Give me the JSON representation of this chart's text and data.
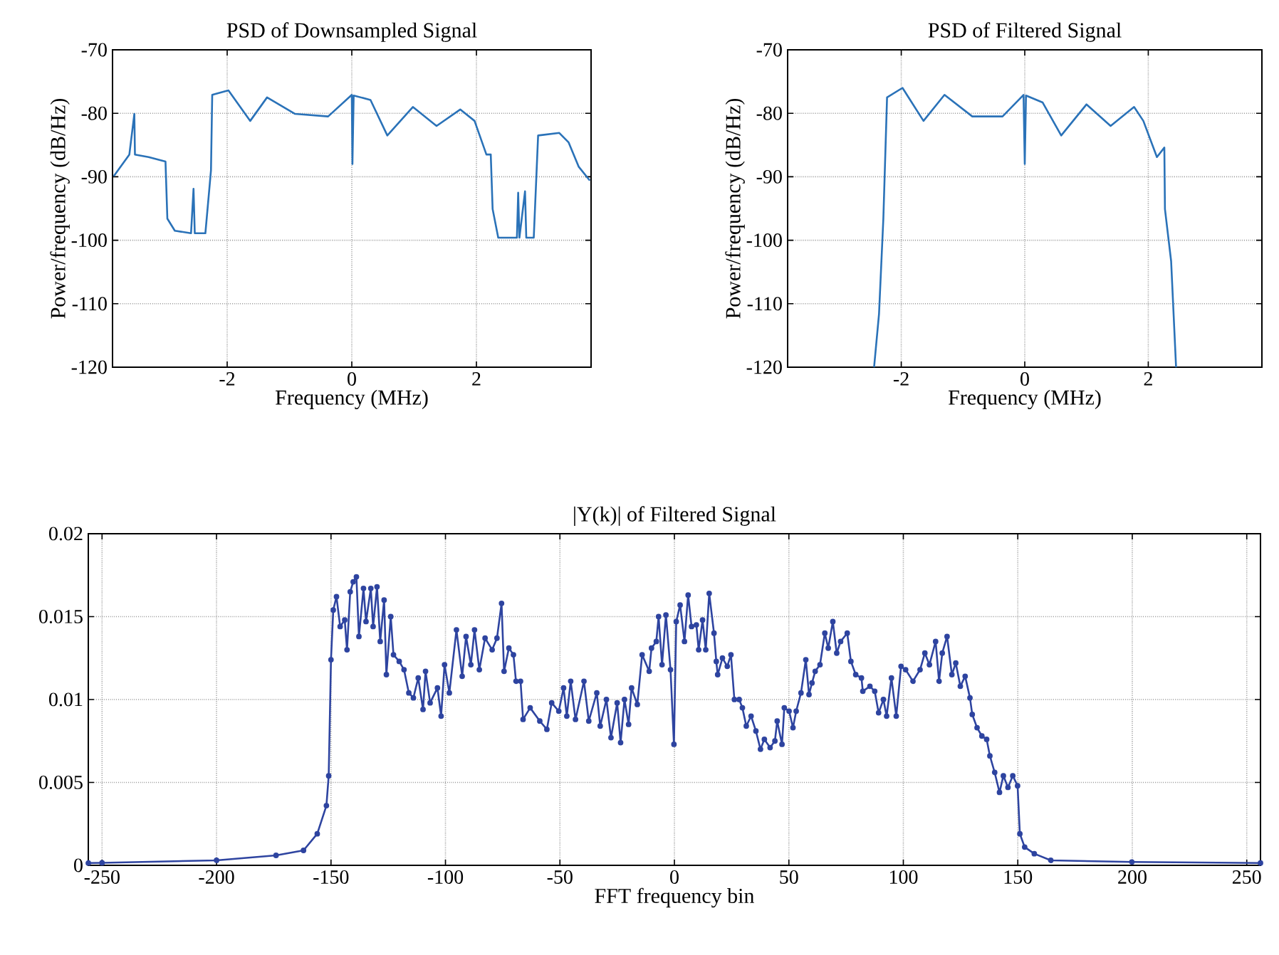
{
  "chart_data": [
    {
      "type": "line",
      "title": "PSD of Downsampled Signal",
      "xlabel": "Frequency (MHz)",
      "ylabel": "Power/frequency (dB/Hz)",
      "xlim": [
        -3.84,
        3.84
      ],
      "ylim": [
        -120,
        -70
      ],
      "xticks": [
        -2,
        0,
        2
      ],
      "yticks": [
        -120,
        -110,
        -100,
        -90,
        -80,
        -70
      ],
      "grid": true,
      "series": [
        {
          "color": "#2a72b8",
          "x": [
            -3.82,
            -3.57,
            -3.49,
            -3.48,
            -3.26,
            -2.99,
            -2.96,
            -2.84,
            -2.58,
            -2.54,
            -2.52,
            -2.35,
            -2.26,
            -2.24,
            -1.98,
            -1.63,
            -1.36,
            -0.91,
            -0.38,
            0,
            0.01,
            0.03,
            0.3,
            0.57,
            0.98,
            1.36,
            1.74,
            1.97,
            2.16,
            2.23,
            2.26,
            2.35,
            2.65,
            2.67,
            2.69,
            2.78,
            2.8,
            2.92,
            2.99,
            3.33,
            3.48,
            3.64,
            3.82
          ],
          "values": [
            -89.9,
            -86.5,
            -80.1,
            -86.5,
            -86.9,
            -87.6,
            -96.6,
            -98.5,
            -98.9,
            -91.9,
            -98.9,
            -98.9,
            -89,
            -77.1,
            -76.4,
            -81.2,
            -77.5,
            -80.1,
            -80.5,
            -77.1,
            -88,
            -77.2,
            -77.9,
            -83.5,
            -79,
            -82,
            -79.4,
            -81.2,
            -86.5,
            -86.5,
            -95.1,
            -99.6,
            -99.6,
            -92.5,
            -99.6,
            -92.3,
            -99.6,
            -99.6,
            -83.5,
            -83.1,
            -84.6,
            -88.4,
            -90.6
          ]
        }
      ]
    },
    {
      "type": "line",
      "title": "PSD of Filtered Signal",
      "xlabel": "Frequency (MHz)",
      "ylabel": "Power/frequency (dB/Hz)",
      "xlim": [
        -3.84,
        3.84
      ],
      "ylim": [
        -120,
        -70
      ],
      "xticks": [
        -2,
        0,
        2
      ],
      "yticks": [
        -120,
        -110,
        -100,
        -90,
        -80,
        -70
      ],
      "grid": true,
      "series": [
        {
          "color": "#2a72b8",
          "x": [
            -2.44,
            -2.36,
            -2.29,
            -2.23,
            -1.98,
            -1.64,
            -1.3,
            -0.85,
            -0.36,
            -0.02,
            0,
            0.02,
            0.29,
            0.59,
            1.0,
            1.39,
            1.77,
            1.92,
            2.14,
            2.26,
            2.27,
            2.37,
            2.45
          ],
          "values": [
            -120,
            -111.6,
            -96.6,
            -77.5,
            -76,
            -81.2,
            -77.1,
            -80.5,
            -80.5,
            -77.1,
            -88,
            -77.2,
            -78.3,
            -83.5,
            -78.6,
            -82,
            -79,
            -81.2,
            -86.9,
            -85.4,
            -95.1,
            -103.3,
            -120
          ]
        }
      ]
    },
    {
      "type": "line",
      "title": "|Y(k)| of Filtered Signal",
      "xlabel": "FFT frequency bin",
      "xlim": [
        -256,
        256
      ],
      "ylim": [
        0,
        0.02
      ],
      "xticks": [
        -250,
        -200,
        -150,
        -100,
        -50,
        0,
        50,
        100,
        150,
        200,
        250
      ],
      "yticks": [
        0,
        0.005,
        0.01,
        0.015,
        0.02
      ],
      "grid": true,
      "marker": "circle",
      "series": [
        {
          "color": "#2e44a0",
          "x": [
            -256,
            -250,
            -200,
            -174,
            -162,
            -156,
            -152,
            -151,
            -150,
            -149,
            -147.6,
            -146,
            -144,
            -143,
            -141.6,
            -140.3,
            -138.9,
            -137.8,
            -135.8,
            -134.7,
            -132.6,
            -131.6,
            -129.9,
            -128.5,
            -126.8,
            -125.8,
            -123.9,
            -122.7,
            -120.2,
            -118.1,
            -116,
            -114,
            -111.9,
            -109.8,
            -108.7,
            -106.7,
            -103.5,
            -101.9,
            -100.4,
            -98.3,
            -95.2,
            -92.7,
            -91,
            -88.9,
            -87.3,
            -85.2,
            -82.7,
            -79.6,
            -77.5,
            -75.5,
            -74.4,
            -72.3,
            -70.3,
            -69.2,
            -67.2,
            -66.1,
            -63,
            -58.8,
            -55.7,
            -53.6,
            -50.5,
            -48.4,
            -47,
            -45.3,
            -43.2,
            -39.5,
            -37.4,
            -33.9,
            -32.4,
            -29.7,
            -27.7,
            -25,
            -23.5,
            -21.8,
            -20,
            -18.7,
            -16.2,
            -14.1,
            -11,
            -10,
            -7.9,
            -6.9,
            -5.4,
            -3.7,
            -1.7,
            -0.2,
            0.8,
            2.5,
            4.4,
            6,
            7.5,
            9.6,
            10.6,
            12.3,
            13.7,
            15.2,
            17.3,
            18.3,
            18.9,
            21,
            23.1,
            24.7,
            26.2,
            28.3,
            29.7,
            31.4,
            33.5,
            35.6,
            37.6,
            39.3,
            41.8,
            43.9,
            44.9,
            47,
            48,
            50.1,
            51.8,
            53.2,
            55.3,
            57.4,
            58.8,
            60.1,
            61.5,
            63.6,
            65.7,
            67.2,
            69.2,
            70.9,
            72.6,
            75.5,
            77.1,
            79.2,
            81.7,
            82.3,
            85.4,
            87.5,
            89.2,
            91.3,
            92.7,
            94.8,
            96.9,
            99,
            101,
            104.2,
            107.3,
            109.4,
            111.4,
            114.1,
            115.6,
            117,
            119.1,
            121.2,
            122.9,
            124.9,
            127,
            129.1,
            130.1,
            132.2,
            134.3,
            136.4,
            137.8,
            139.9,
            142,
            143.7,
            145.7,
            147.8,
            149.9,
            150.9,
            153,
            157.2,
            164.4,
            199.8,
            256
          ],
          "values": [
            0.00014,
            0.00015,
            0.0003,
            0.0006,
            0.0009,
            0.0019,
            0.0036,
            0.0054,
            0.0124,
            0.0154,
            0.0162,
            0.0144,
            0.0148,
            0.013,
            0.0165,
            0.0171,
            0.0174,
            0.0138,
            0.0167,
            0.0147,
            0.0167,
            0.0144,
            0.0168,
            0.0135,
            0.016,
            0.0115,
            0.015,
            0.0127,
            0.0123,
            0.0118,
            0.0104,
            0.0101,
            0.0113,
            0.0094,
            0.0117,
            0.0098,
            0.0107,
            0.009,
            0.0121,
            0.0104,
            0.0142,
            0.0114,
            0.0138,
            0.0121,
            0.0142,
            0.0118,
            0.0137,
            0.013,
            0.0137,
            0.0158,
            0.0117,
            0.0131,
            0.0127,
            0.0111,
            0.0111,
            0.0088,
            0.0095,
            0.0087,
            0.0082,
            0.0098,
            0.0093,
            0.0107,
            0.009,
            0.0111,
            0.0088,
            0.0111,
            0.0087,
            0.0104,
            0.0084,
            0.01,
            0.0077,
            0.0098,
            0.0074,
            0.01,
            0.0085,
            0.0107,
            0.0097,
            0.0127,
            0.0117,
            0.0131,
            0.0135,
            0.015,
            0.0121,
            0.0151,
            0.0118,
            0.0073,
            0.0147,
            0.0157,
            0.0135,
            0.0163,
            0.0144,
            0.0145,
            0.013,
            0.0148,
            0.013,
            0.0164,
            0.014,
            0.0123,
            0.0115,
            0.0125,
            0.012,
            0.0127,
            0.01,
            0.01,
            0.0095,
            0.0084,
            0.009,
            0.0081,
            0.007,
            0.0076,
            0.0071,
            0.0075,
            0.0087,
            0.0073,
            0.0095,
            0.0093,
            0.0083,
            0.0093,
            0.0104,
            0.0124,
            0.0103,
            0.011,
            0.0117,
            0.0121,
            0.014,
            0.0131,
            0.0147,
            0.0128,
            0.0135,
            0.014,
            0.0123,
            0.0115,
            0.0113,
            0.0105,
            0.0108,
            0.0105,
            0.0092,
            0.01,
            0.009,
            0.0113,
            0.009,
            0.012,
            0.0118,
            0.0111,
            0.0118,
            0.0128,
            0.0121,
            0.0135,
            0.0111,
            0.0128,
            0.0138,
            0.0115,
            0.0122,
            0.0108,
            0.0114,
            0.0101,
            0.0091,
            0.0083,
            0.0078,
            0.0076,
            0.0066,
            0.0056,
            0.0044,
            0.0054,
            0.0047,
            0.0054,
            0.0048,
            0.0019,
            0.0011,
            0.0007,
            0.0003,
            0.0002,
            0.00014
          ]
        }
      ]
    }
  ]
}
